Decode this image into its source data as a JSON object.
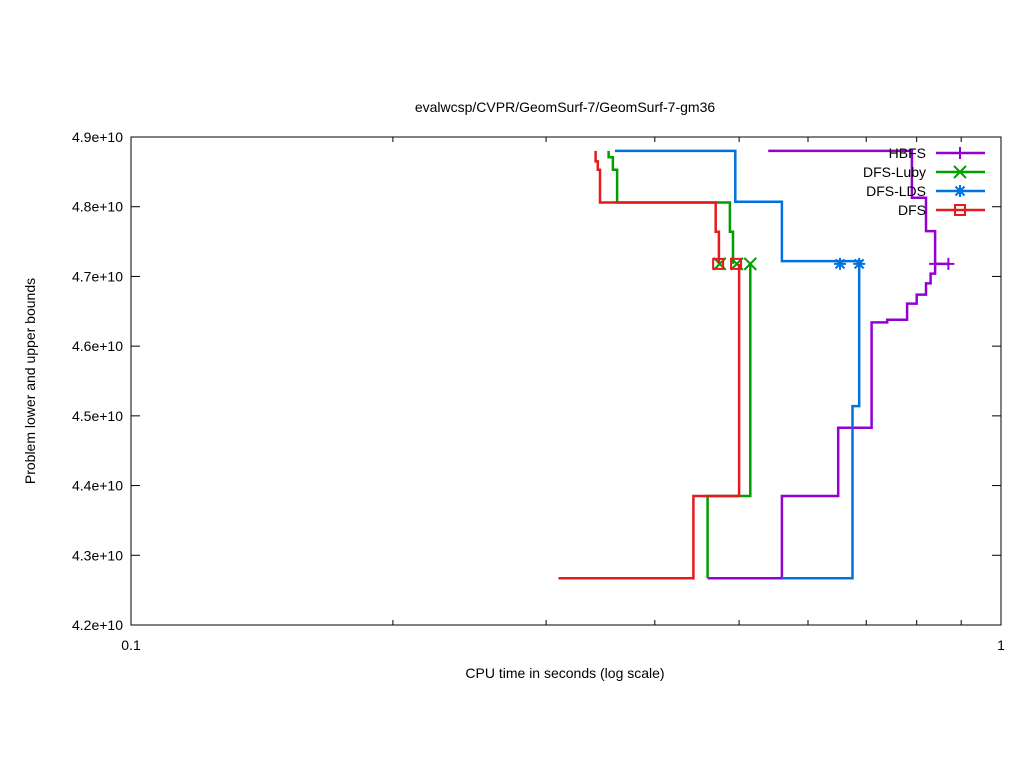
{
  "chart_data": {
    "type": "line",
    "title": "evalwcsp/CVPR/GeomSurf-7/GeomSurf-7-gm36",
    "xlabel": "CPU time in seconds (log scale)",
    "ylabel": "Problem lower and upper bounds",
    "xscale": "log",
    "xlim": [
      0.1,
      1
    ],
    "ylim": [
      42000000000,
      49000000000
    ],
    "x_ticks": [
      {
        "value": 0.1,
        "label": "0.1"
      },
      {
        "value": 1,
        "label": "1"
      }
    ],
    "x_minor_ticks": [
      0.2,
      0.3,
      0.4,
      0.5,
      0.6,
      0.7,
      0.8,
      0.9
    ],
    "y_ticks": [
      {
        "value": 42000000000,
        "label": "4.2e+10"
      },
      {
        "value": 43000000000,
        "label": "4.3e+10"
      },
      {
        "value": 44000000000,
        "label": "4.4e+10"
      },
      {
        "value": 45000000000,
        "label": "4.5e+10"
      },
      {
        "value": 46000000000,
        "label": "4.6e+10"
      },
      {
        "value": 47000000000,
        "label": "4.7e+10"
      },
      {
        "value": 48000000000,
        "label": "4.8e+10"
      },
      {
        "value": 49000000000,
        "label": "4.9e+10"
      }
    ],
    "grid": false,
    "legend_position": "top-right",
    "series": [
      {
        "name": "HBFS",
        "color": "#9400d3",
        "marker": "plus",
        "upper": [
          [
            0.54,
            48800000000
          ],
          [
            0.79,
            48800000000
          ],
          [
            0.79,
            48130000000
          ],
          [
            0.82,
            48130000000
          ],
          [
            0.82,
            47650000000
          ],
          [
            0.84,
            47650000000
          ],
          [
            0.84,
            47180000000
          ]
        ],
        "lower": [
          [
            0.46,
            42670000000
          ],
          [
            0.56,
            42670000000
          ],
          [
            0.56,
            43850000000
          ],
          [
            0.65,
            43850000000
          ],
          [
            0.65,
            44830000000
          ],
          [
            0.71,
            44830000000
          ],
          [
            0.71,
            46340000000
          ],
          [
            0.74,
            46340000000
          ],
          [
            0.74,
            46380000000
          ],
          [
            0.78,
            46380000000
          ],
          [
            0.78,
            46610000000
          ],
          [
            0.8,
            46610000000
          ],
          [
            0.8,
            46740000000
          ],
          [
            0.82,
            46740000000
          ],
          [
            0.82,
            46900000000
          ],
          [
            0.83,
            46900000000
          ],
          [
            0.83,
            47040000000
          ],
          [
            0.84,
            47040000000
          ],
          [
            0.84,
            47180000000
          ],
          [
            0.87,
            47180000000
          ]
        ],
        "markers": [
          [
            0.84,
            47180000000
          ],
          [
            0.87,
            47180000000
          ]
        ]
      },
      {
        "name": "DFS-Luby",
        "color": "#009e00",
        "marker": "cross",
        "upper": [
          [
            0.354,
            48800000000
          ],
          [
            0.354,
            48710000000
          ],
          [
            0.358,
            48710000000
          ],
          [
            0.358,
            48530000000
          ],
          [
            0.362,
            48530000000
          ],
          [
            0.362,
            48060000000
          ],
          [
            0.488,
            48060000000
          ],
          [
            0.488,
            47640000000
          ],
          [
            0.492,
            47640000000
          ],
          [
            0.492,
            47180000000
          ]
        ],
        "lower": [
          [
            0.46,
            42670000000
          ],
          [
            0.46,
            43850000000
          ],
          [
            0.515,
            43850000000
          ],
          [
            0.515,
            47180000000
          ]
        ],
        "markers": [
          [
            0.475,
            47180000000
          ],
          [
            0.497,
            47180000000
          ],
          [
            0.515,
            47180000000
          ]
        ]
      },
      {
        "name": "DFS-LDS",
        "color": "#0072e0",
        "marker": "star",
        "upper": [
          [
            0.36,
            48800000000
          ],
          [
            0.495,
            48800000000
          ],
          [
            0.495,
            48070000000
          ],
          [
            0.56,
            48070000000
          ],
          [
            0.56,
            47220000000
          ],
          [
            0.69,
            47220000000
          ],
          [
            0.69,
            47180000000
          ]
        ],
        "lower": [
          [
            0.56,
            42670000000
          ],
          [
            0.675,
            42670000000
          ],
          [
            0.675,
            45140000000
          ],
          [
            0.687,
            45140000000
          ],
          [
            0.687,
            47180000000
          ]
        ],
        "markers": [
          [
            0.653,
            47180000000
          ],
          [
            0.687,
            47180000000
          ]
        ]
      },
      {
        "name": "DFS",
        "color": "#e41a1c",
        "marker": "square",
        "upper": [
          [
            0.342,
            48800000000
          ],
          [
            0.342,
            48650000000
          ],
          [
            0.344,
            48650000000
          ],
          [
            0.344,
            48530000000
          ],
          [
            0.346,
            48530000000
          ],
          [
            0.346,
            48060000000
          ],
          [
            0.47,
            48060000000
          ],
          [
            0.47,
            47640000000
          ],
          [
            0.474,
            47640000000
          ],
          [
            0.474,
            47180000000
          ]
        ],
        "lower": [
          [
            0.31,
            42670000000
          ],
          [
            0.443,
            42670000000
          ],
          [
            0.443,
            43850000000
          ],
          [
            0.5,
            43850000000
          ],
          [
            0.5,
            47180000000
          ]
        ],
        "markers": [
          [
            0.473,
            47180000000
          ],
          [
            0.496,
            47180000000
          ]
        ]
      }
    ]
  }
}
